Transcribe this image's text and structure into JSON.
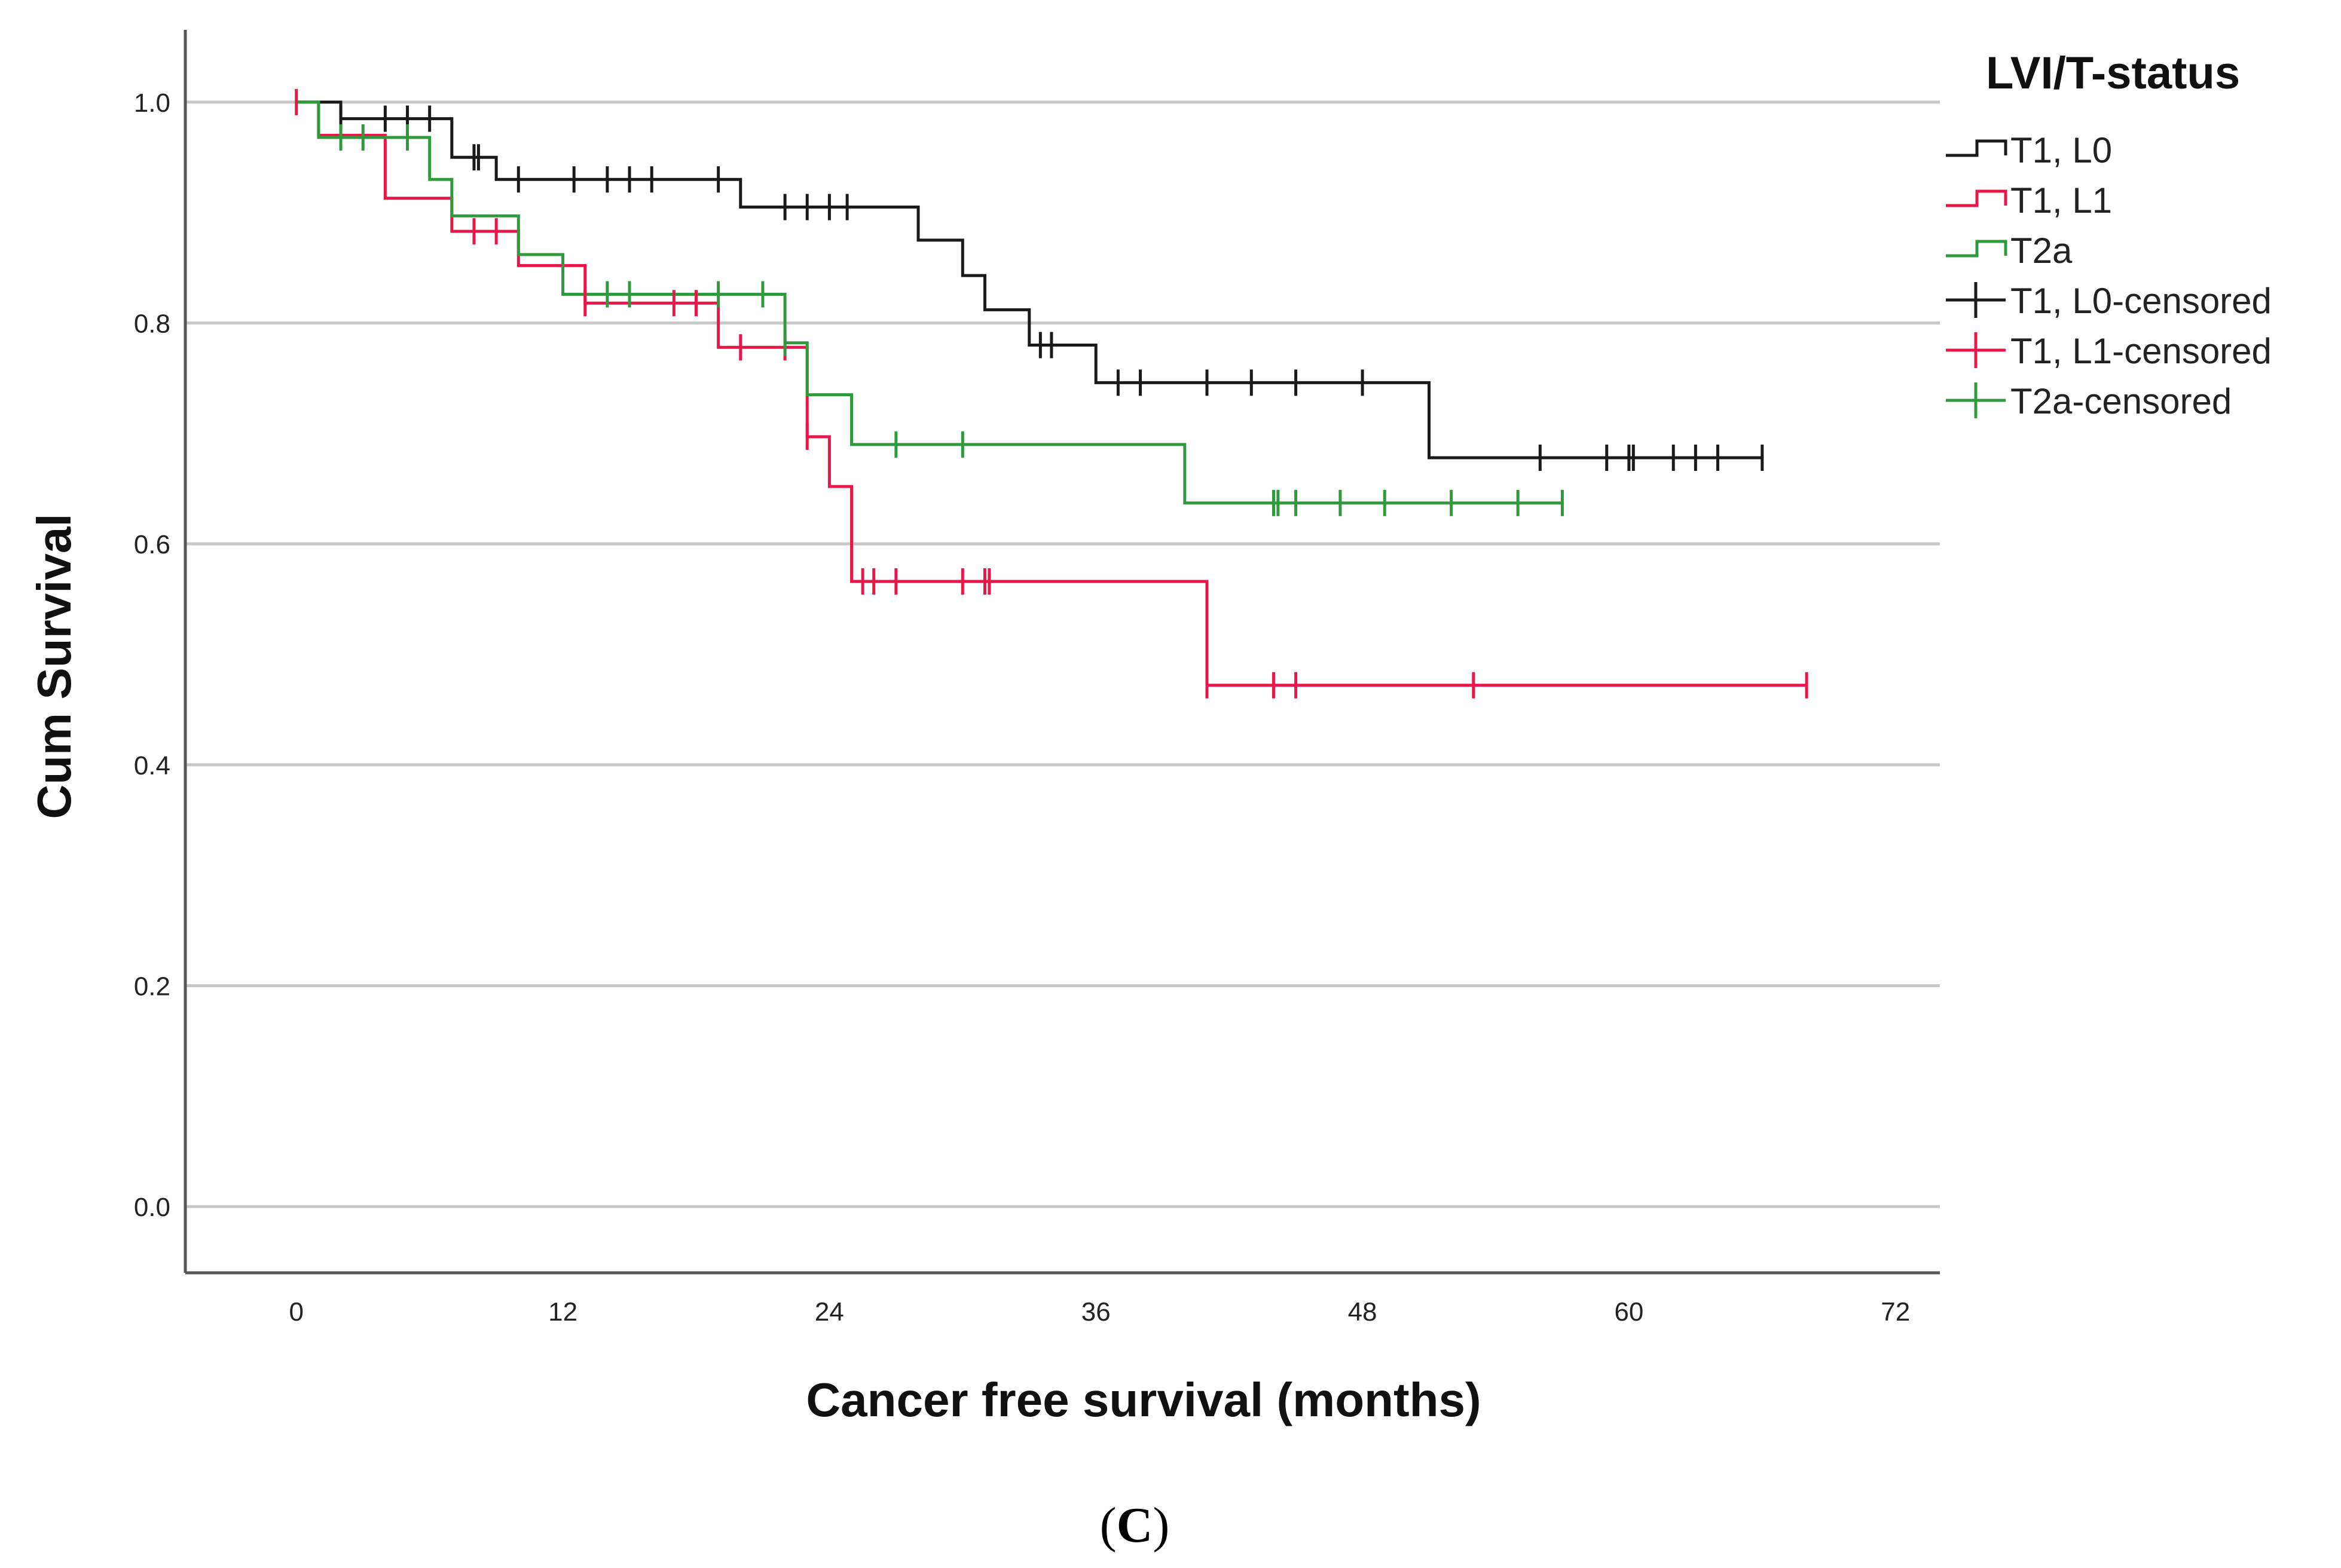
{
  "chart_data": {
    "type": "line",
    "subtype": "kaplan-meier",
    "title": "",
    "panel_label": "(C)",
    "panel_letter": "C",
    "xlabel": "Cancer free survival (months)",
    "ylabel": "Cum Survival",
    "xlim": [
      -5,
      74
    ],
    "ylim": [
      -0.06,
      1.06
    ],
    "x_ticks": [
      0,
      12,
      24,
      36,
      48,
      60,
      72
    ],
    "x_tick_labels": [
      "0",
      "12",
      "24",
      "36",
      "48",
      "60",
      "72"
    ],
    "y_ticks": [
      0.0,
      0.2,
      0.4,
      0.6,
      0.8,
      1.0
    ],
    "y_tick_labels": [
      "0.0",
      "0.2",
      "0.4",
      "0.6",
      "0.8",
      "1.0"
    ],
    "grid": "horizontal",
    "legend": {
      "title": "LVI/T-status",
      "placement": "right",
      "entries": [
        {
          "label": "T1, L0",
          "kind": "step",
          "color": "#1a1a1a"
        },
        {
          "label": "T1, L1",
          "kind": "step",
          "color": "#e8174a"
        },
        {
          "label": "T2a",
          "kind": "step",
          "color": "#2e9a3c"
        },
        {
          "label": "T1, L0-censored",
          "kind": "censor",
          "color": "#1a1a1a"
        },
        {
          "label": "T1, L1-censored",
          "kind": "censor",
          "color": "#e8174a"
        },
        {
          "label": "T2a-censored",
          "kind": "censor",
          "color": "#2e9a3c"
        }
      ]
    },
    "series": [
      {
        "name": "T1, L0",
        "color": "#1a1a1a",
        "steps": [
          [
            0,
            1.0
          ],
          [
            2,
            0.985
          ],
          [
            7,
            0.95
          ],
          [
            9,
            0.93
          ],
          [
            20,
            0.905
          ],
          [
            28,
            0.875
          ],
          [
            30,
            0.843
          ],
          [
            31,
            0.812
          ],
          [
            33,
            0.78
          ],
          [
            36,
            0.746
          ],
          [
            51,
            0.678
          ],
          [
            66,
            0.678
          ]
        ],
        "censored": [
          2,
          4,
          5,
          6,
          8,
          8.2,
          10,
          12.5,
          14,
          15,
          16,
          19,
          22,
          23,
          24,
          24.8,
          33.5,
          34,
          37,
          38,
          41,
          43,
          45,
          48,
          56,
          59,
          60,
          60.2,
          62,
          63,
          64,
          66
        ]
      },
      {
        "name": "T1, L1",
        "color": "#e8174a",
        "steps": [
          [
            0,
            1.0
          ],
          [
            1,
            0.97
          ],
          [
            4,
            0.913
          ],
          [
            7,
            0.883
          ],
          [
            10,
            0.852
          ],
          [
            13,
            0.818
          ],
          [
            19,
            0.778
          ],
          [
            23,
            0.697
          ],
          [
            24,
            0.652
          ],
          [
            25,
            0.566
          ],
          [
            41,
            0.472
          ],
          [
            68,
            0.472
          ]
        ],
        "censored": [
          0,
          8,
          9,
          13,
          17,
          18,
          20,
          22,
          23,
          25.5,
          26,
          27,
          30,
          31,
          31.2,
          41,
          44,
          45,
          53,
          68
        ]
      },
      {
        "name": "T2a",
        "color": "#2e9a3c",
        "steps": [
          [
            0,
            1.0
          ],
          [
            1,
            0.968
          ],
          [
            6,
            0.93
          ],
          [
            7,
            0.897
          ],
          [
            10,
            0.862
          ],
          [
            12,
            0.826
          ],
          [
            22,
            0.782
          ],
          [
            23,
            0.735
          ],
          [
            25,
            0.69
          ],
          [
            40,
            0.637
          ],
          [
            57,
            0.637
          ]
        ],
        "censored": [
          2,
          3,
          5,
          14,
          15,
          19,
          21,
          22,
          27,
          30,
          44,
          44.2,
          45,
          47,
          49,
          52,
          55,
          57
        ]
      }
    ]
  }
}
